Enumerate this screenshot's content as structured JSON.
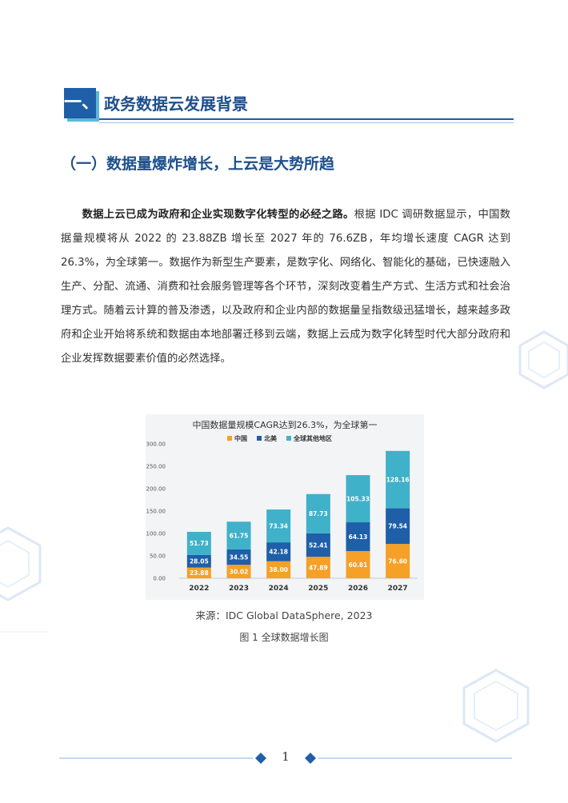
{
  "section": {
    "number": "一、",
    "title": "政务数据云发展背景"
  },
  "subsection": {
    "title": "（一）数据量爆炸增长，上云是大势所趋"
  },
  "body": {
    "lead": "数据上云已成为政府和企业实现数字化转型的必经之路。",
    "rest": "根据 IDC 调研数据显示，中国数据量规模将从 2022 的 23.88ZB 增长至 2027 年的 76.6ZB，年均增长速度 CAGR 达到 26.3%，为全球第一。数据作为新型生产要素，是数字化、网络化、智能化的基础，已快速融入生产、分配、流通、消费和社会服务管理等各个环节，深刻改变着生产方式、生活方式和社会治理方式。随着云计算的普及渗透，以及政府和企业内部的数据量呈指数级迅猛增长，越来越多政府和企业开始将系统和数据由本地部署迁移到云端，数据上云成为数字化转型时代大部分政府和企业发挥数据要素价值的必然选择。"
  },
  "chart_data": {
    "type": "bar",
    "stacked": true,
    "title": "中国数据量规模CAGR达到26.3%，为全球第一",
    "categories": [
      "2022",
      "2023",
      "2024",
      "2025",
      "2026",
      "2027"
    ],
    "series": [
      {
        "name": "中国",
        "color": "#f5a026",
        "values": [
          23.88,
          30.02,
          38.0,
          47.89,
          60.81,
          76.6
        ]
      },
      {
        "name": "北美",
        "color": "#1e5fa8",
        "values": [
          28.05,
          34.55,
          42.18,
          52.41,
          64.13,
          79.54
        ]
      },
      {
        "name": "全球其他地区",
        "color": "#3fb1c9",
        "values": [
          51.73,
          61.75,
          73.34,
          87.73,
          105.33,
          128.16
        ]
      }
    ],
    "value_labels": [
      [
        "23.88",
        "30.02",
        "38.00",
        "47.89",
        "60.81",
        "76.60"
      ],
      [
        "28.05",
        "34.55",
        "42.18",
        "52.41",
        "64.13",
        "79.54"
      ],
      [
        "51.73",
        "61.75",
        "73.34",
        "87.73",
        "105.33",
        "128.16"
      ]
    ],
    "yticks": [
      "0.00",
      "50.00",
      "100.00",
      "150.00",
      "200.00",
      "250.00",
      "300.00"
    ],
    "ylim": [
      0,
      300
    ],
    "legend_position": "top"
  },
  "figure": {
    "source": "来源：IDC Global DataSphere, 2023",
    "caption": "图 1 全球数据增长图"
  },
  "footer": {
    "page_number": "1"
  }
}
